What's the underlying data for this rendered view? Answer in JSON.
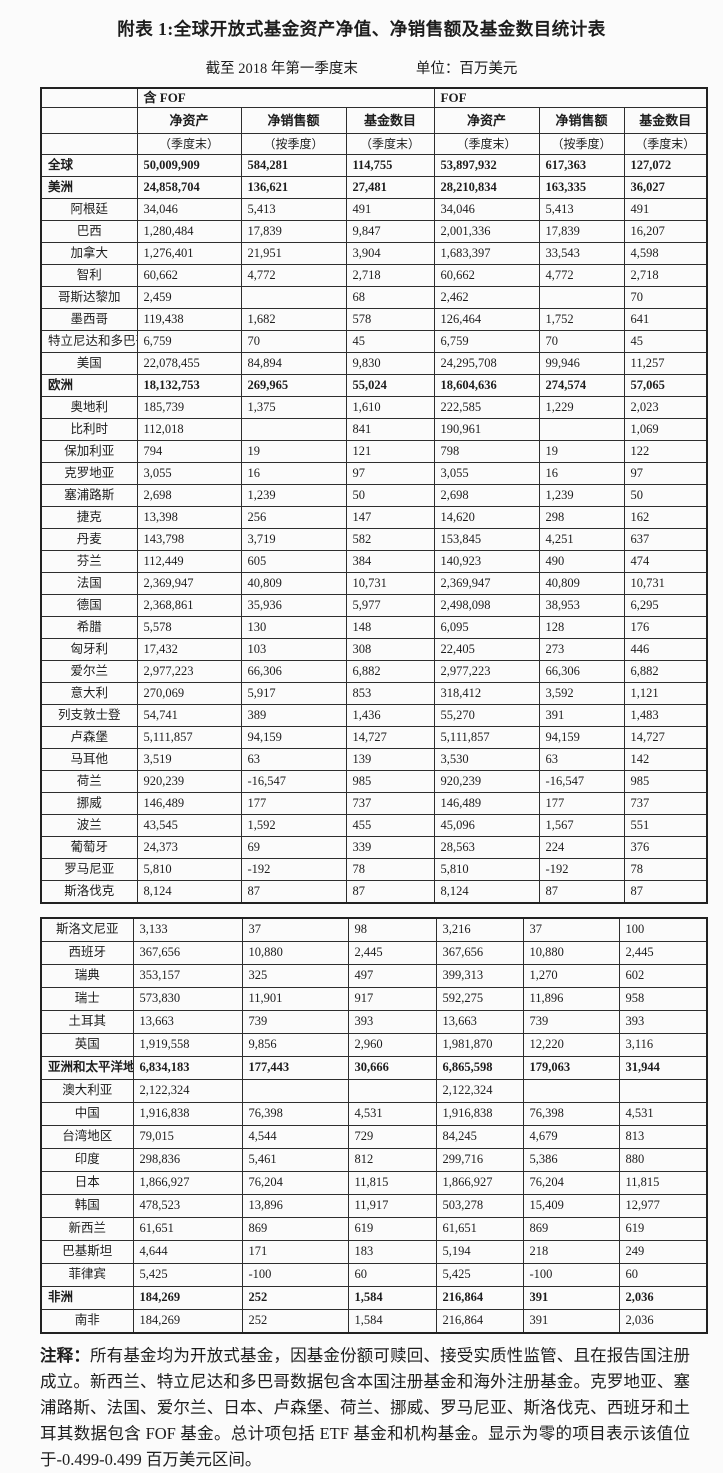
{
  "page": {
    "title": "附表 1:全球开放式基金资产净值、净销售额及基金数目统计表",
    "as_of": "截至 2018 年第一季度末",
    "unit": "单位：百万美元"
  },
  "colors": {
    "background": "#fbfbfb",
    "border": "#2e2e2e",
    "text": "#1d1d1d"
  },
  "header": {
    "group_left": "含 FOF",
    "group_right": "FOF",
    "cols": [
      "净资产",
      "净销售额",
      "基金数目",
      "净资产",
      "净销售额",
      "基金数目"
    ],
    "subs": [
      "（季度末）",
      "（按季度）",
      "（季度末）",
      "（季度末）",
      "（按季度）",
      "（季度末）"
    ]
  },
  "tables": [
    {
      "rows": [
        {
          "label": "全球",
          "type": "region",
          "values": [
            "50,009,909",
            "584,281",
            "114,755",
            "53,897,932",
            "617,363",
            "127,072"
          ]
        },
        {
          "label": "美洲",
          "type": "region",
          "values": [
            "24,858,704",
            "136,621",
            "27,481",
            "28,210,834",
            "163,335",
            "36,027"
          ]
        },
        {
          "label": "阿根廷",
          "type": "country",
          "values": [
            "34,046",
            "5,413",
            "491",
            "34,046",
            "5,413",
            "491"
          ]
        },
        {
          "label": "巴西",
          "type": "country",
          "values": [
            "1,280,484",
            "17,839",
            "9,847",
            "2,001,336",
            "17,839",
            "16,207"
          ]
        },
        {
          "label": "加拿大",
          "type": "country",
          "values": [
            "1,276,401",
            "21,951",
            "3,904",
            "1,683,397",
            "33,543",
            "4,598"
          ]
        },
        {
          "label": "智利",
          "type": "country",
          "values": [
            "60,662",
            "4,772",
            "2,718",
            "60,662",
            "4,772",
            "2,718"
          ]
        },
        {
          "label": "哥斯达黎加",
          "type": "country",
          "values": [
            "2,459",
            "",
            "68",
            "2,462",
            "",
            "70"
          ]
        },
        {
          "label": "墨西哥",
          "type": "country",
          "values": [
            "119,438",
            "1,682",
            "578",
            "126,464",
            "1,752",
            "641"
          ]
        },
        {
          "label": "特立尼达和多巴哥",
          "type": "country",
          "values": [
            "6,759",
            "70",
            "45",
            "6,759",
            "70",
            "45"
          ]
        },
        {
          "label": "美国",
          "type": "country",
          "values": [
            "22,078,455",
            "84,894",
            "9,830",
            "24,295,708",
            "99,946",
            "11,257"
          ]
        },
        {
          "label": "欧洲",
          "type": "region",
          "values": [
            "18,132,753",
            "269,965",
            "55,024",
            "18,604,636",
            "274,574",
            "57,065"
          ]
        },
        {
          "label": "奥地利",
          "type": "country",
          "values": [
            "185,739",
            "1,375",
            "1,610",
            "222,585",
            "1,229",
            "2,023"
          ]
        },
        {
          "label": "比利时",
          "type": "country",
          "values": [
            "112,018",
            "",
            "841",
            "190,961",
            "",
            "1,069"
          ]
        },
        {
          "label": "保加利亚",
          "type": "country",
          "values": [
            "794",
            "19",
            "121",
            "798",
            "19",
            "122"
          ]
        },
        {
          "label": "克罗地亚",
          "type": "country",
          "values": [
            "3,055",
            "16",
            "97",
            "3,055",
            "16",
            "97"
          ]
        },
        {
          "label": "塞浦路斯",
          "type": "country",
          "values": [
            "2,698",
            "1,239",
            "50",
            "2,698",
            "1,239",
            "50"
          ]
        },
        {
          "label": "捷克",
          "type": "country",
          "values": [
            "13,398",
            "256",
            "147",
            "14,620",
            "298",
            "162"
          ]
        },
        {
          "label": "丹麦",
          "type": "country",
          "values": [
            "143,798",
            "3,719",
            "582",
            "153,845",
            "4,251",
            "637"
          ]
        },
        {
          "label": "芬兰",
          "type": "country",
          "values": [
            "112,449",
            "605",
            "384",
            "140,923",
            "490",
            "474"
          ]
        },
        {
          "label": "法国",
          "type": "country",
          "values": [
            "2,369,947",
            "40,809",
            "10,731",
            "2,369,947",
            "40,809",
            "10,731"
          ]
        },
        {
          "label": "德国",
          "type": "country",
          "values": [
            "2,368,861",
            "35,936",
            "5,977",
            "2,498,098",
            "38,953",
            "6,295"
          ]
        },
        {
          "label": "希腊",
          "type": "country",
          "values": [
            "5,578",
            "130",
            "148",
            "6,095",
            "128",
            "176"
          ]
        },
        {
          "label": "匈牙利",
          "type": "country",
          "values": [
            "17,432",
            "103",
            "308",
            "22,405",
            "273",
            "446"
          ]
        },
        {
          "label": "爱尔兰",
          "type": "country",
          "values": [
            "2,977,223",
            "66,306",
            "6,882",
            "2,977,223",
            "66,306",
            "6,882"
          ]
        },
        {
          "label": "意大利",
          "type": "country",
          "values": [
            "270,069",
            "5,917",
            "853",
            "318,412",
            "3,592",
            "1,121"
          ]
        },
        {
          "label": "列支敦士登",
          "type": "country",
          "values": [
            "54,741",
            "389",
            "1,436",
            "55,270",
            "391",
            "1,483"
          ]
        },
        {
          "label": "卢森堡",
          "type": "country",
          "values": [
            "5,111,857",
            "94,159",
            "14,727",
            "5,111,857",
            "94,159",
            "14,727"
          ]
        },
        {
          "label": "马耳他",
          "type": "country",
          "values": [
            "3,519",
            "63",
            "139",
            "3,530",
            "63",
            "142"
          ]
        },
        {
          "label": "荷兰",
          "type": "country",
          "values": [
            "920,239",
            "-16,547",
            "985",
            "920,239",
            "-16,547",
            "985"
          ]
        },
        {
          "label": "挪威",
          "type": "country",
          "values": [
            "146,489",
            "177",
            "737",
            "146,489",
            "177",
            "737"
          ]
        },
        {
          "label": "波兰",
          "type": "country",
          "values": [
            "43,545",
            "1,592",
            "455",
            "45,096",
            "1,567",
            "551"
          ]
        },
        {
          "label": "葡萄牙",
          "type": "country",
          "values": [
            "24,373",
            "69",
            "339",
            "28,563",
            "224",
            "376"
          ]
        },
        {
          "label": "罗马尼亚",
          "type": "country",
          "values": [
            "5,810",
            "-192",
            "78",
            "5,810",
            "-192",
            "78"
          ]
        },
        {
          "label": "斯洛伐克",
          "type": "country",
          "values": [
            "8,124",
            "87",
            "87",
            "8,124",
            "87",
            "87"
          ]
        }
      ]
    },
    {
      "rows": [
        {
          "label": "斯洛文尼亚",
          "type": "country",
          "values": [
            "3,133",
            "37",
            "98",
            "3,216",
            "37",
            "100"
          ]
        },
        {
          "label": "西班牙",
          "type": "country",
          "values": [
            "367,656",
            "10,880",
            "2,445",
            "367,656",
            "10,880",
            "2,445"
          ]
        },
        {
          "label": "瑞典",
          "type": "country",
          "values": [
            "353,157",
            "325",
            "497",
            "399,313",
            "1,270",
            "602"
          ]
        },
        {
          "label": "瑞士",
          "type": "country",
          "values": [
            "573,830",
            "11,901",
            "917",
            "592,275",
            "11,896",
            "958"
          ]
        },
        {
          "label": "土耳其",
          "type": "country",
          "values": [
            "13,663",
            "739",
            "393",
            "13,663",
            "739",
            "393"
          ]
        },
        {
          "label": "英国",
          "type": "country",
          "values": [
            "1,919,558",
            "9,856",
            "2,960",
            "1,981,870",
            "12,220",
            "3,116"
          ]
        },
        {
          "label": "亚洲和太平洋地区",
          "type": "region",
          "values": [
            "6,834,183",
            "177,443",
            "30,666",
            "6,865,598",
            "179,063",
            "31,944"
          ]
        },
        {
          "label": "澳大利亚",
          "type": "country",
          "values": [
            "2,122,324",
            "",
            "",
            "2,122,324",
            "",
            ""
          ]
        },
        {
          "label": "中国",
          "type": "country",
          "values": [
            "1,916,838",
            "76,398",
            "4,531",
            "1,916,838",
            "76,398",
            "4,531"
          ]
        },
        {
          "label": "台湾地区",
          "type": "country",
          "values": [
            "79,015",
            "4,544",
            "729",
            "84,245",
            "4,679",
            "813"
          ]
        },
        {
          "label": "印度",
          "type": "country",
          "values": [
            "298,836",
            "5,461",
            "812",
            "299,716",
            "5,386",
            "880"
          ]
        },
        {
          "label": "日本",
          "type": "country",
          "values": [
            "1,866,927",
            "76,204",
            "11,815",
            "1,866,927",
            "76,204",
            "11,815"
          ]
        },
        {
          "label": "韩国",
          "type": "country",
          "values": [
            "478,523",
            "13,896",
            "11,917",
            "503,278",
            "15,409",
            "12,977"
          ]
        },
        {
          "label": "新西兰",
          "type": "country",
          "values": [
            "61,651",
            "869",
            "619",
            "61,651",
            "869",
            "619"
          ]
        },
        {
          "label": "巴基斯坦",
          "type": "country",
          "values": [
            "4,644",
            "171",
            "183",
            "5,194",
            "218",
            "249"
          ]
        },
        {
          "label": "菲律宾",
          "type": "country",
          "values": [
            "5,425",
            "-100",
            "60",
            "5,425",
            "-100",
            "60"
          ]
        },
        {
          "label": "非洲",
          "type": "region",
          "values": [
            "184,269",
            "252",
            "1,584",
            "216,864",
            "391",
            "2,036"
          ]
        },
        {
          "label": "南非",
          "type": "country",
          "values": [
            "184,269",
            "252",
            "1,584",
            "216,864",
            "391",
            "2,036"
          ]
        }
      ]
    }
  ],
  "note": {
    "label": "注释：",
    "body": "所有基金均为开放式基金，因基金份额可赎回、接受实质性监管、且在报告国注册成立。新西兰、特立尼达和多巴哥数据包含本国注册基金和海外注册基金。克罗地亚、塞浦路斯、法国、爱尔兰、日本、卢森堡、荷兰、挪威、罗马尼亚、斯洛伐克、西班牙和土耳其数据包含 FOF 基金。总计项包括 ETF 基金和机构基金。显示为零的项目表示该值位于-0.499-0.499 百万美元区间。"
  }
}
